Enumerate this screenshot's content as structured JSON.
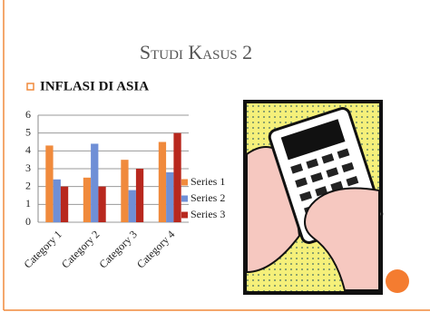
{
  "title": "Studi Kasus 2",
  "bullet": "INFLASI DI ASIA",
  "chart_data": {
    "type": "bar",
    "categories": [
      "Category 1",
      "Category 2",
      "Category 3",
      "Category 4"
    ],
    "series": [
      {
        "name": "Series 1",
        "color": "#f08a3c",
        "values": [
          4.3,
          2.5,
          3.5,
          4.5
        ]
      },
      {
        "name": "Series 2",
        "color": "#6f8fd6",
        "values": [
          2.4,
          4.4,
          1.8,
          2.8
        ]
      },
      {
        "name": "Series 3",
        "color": "#b8281e",
        "values": [
          2,
          2,
          3,
          5
        ]
      }
    ],
    "ylim": [
      0,
      6
    ],
    "yticks": [
      0,
      1,
      2,
      3,
      4,
      5,
      6
    ],
    "grid": true,
    "legend": "right"
  }
}
